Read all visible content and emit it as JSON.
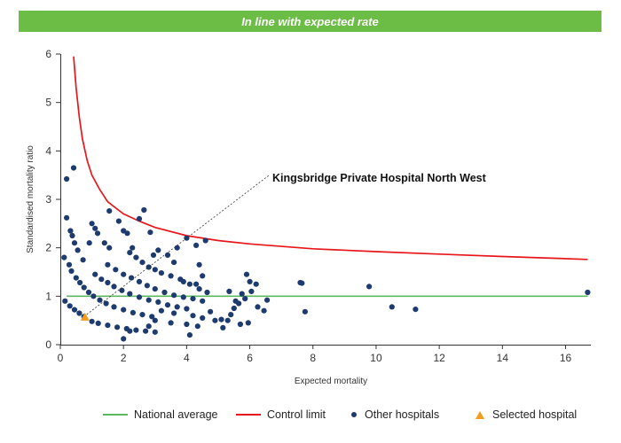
{
  "banner": {
    "text": "In line with expected rate",
    "color": "#6cbd45"
  },
  "chart_data": {
    "type": "scatter",
    "title": "",
    "xlabel": "Expected mortality",
    "ylabel": "Standardised mortality ratio",
    "xlim": [
      0,
      16.8
    ],
    "ylim": [
      0,
      6
    ],
    "x_ticks": [
      0,
      2,
      4,
      6,
      8,
      10,
      12,
      14,
      16
    ],
    "y_ticks": [
      0,
      1,
      2,
      3,
      4,
      5,
      6
    ],
    "grid": false,
    "legend_position": "bottom",
    "national_average": 1,
    "colors": {
      "national_average": "#5cb85c",
      "control_limit": "#e8161b",
      "other_hospitals": "#1d3b6e",
      "selected_hospital": "#f39c1f"
    },
    "control_limit": {
      "x": [
        0.42,
        0.5,
        0.6,
        0.7,
        0.85,
        1.0,
        1.25,
        1.5,
        2.0,
        2.5,
        3.0,
        4.0,
        5.0,
        6.0,
        8.0,
        10.0,
        12.0,
        14.0,
        16.7
      ],
      "y": [
        5.95,
        5.3,
        4.7,
        4.25,
        3.8,
        3.5,
        3.2,
        2.95,
        2.7,
        2.55,
        2.42,
        2.25,
        2.15,
        2.08,
        1.98,
        1.92,
        1.87,
        1.82,
        1.76
      ]
    },
    "other_hospitals": [
      [
        0.2,
        3.42
      ],
      [
        0.42,
        3.65
      ],
      [
        0.2,
        2.62
      ],
      [
        0.32,
        2.35
      ],
      [
        0.38,
        2.25
      ],
      [
        0.45,
        2.1
      ],
      [
        0.55,
        1.95
      ],
      [
        0.72,
        1.75
      ],
      [
        0.92,
        2.1
      ],
      [
        1.0,
        2.5
      ],
      [
        1.1,
        2.4
      ],
      [
        1.18,
        2.3
      ],
      [
        1.4,
        2.1
      ],
      [
        1.55,
        2.0
      ],
      [
        1.55,
        2.76
      ],
      [
        1.85,
        2.55
      ],
      [
        2.0,
        2.35
      ],
      [
        2.12,
        2.3
      ],
      [
        2.28,
        2.0
      ],
      [
        2.5,
        2.6
      ],
      [
        2.65,
        2.78
      ],
      [
        2.85,
        2.32
      ],
      [
        2.95,
        1.85
      ],
      [
        3.1,
        1.95
      ],
      [
        3.4,
        1.85
      ],
      [
        3.7,
        2.0
      ],
      [
        4.0,
        2.2
      ],
      [
        4.3,
        2.05
      ],
      [
        4.6,
        2.15
      ],
      [
        4.4,
        1.65
      ],
      [
        4.5,
        1.42
      ],
      [
        4.3,
        1.25
      ],
      [
        3.6,
        1.7
      ],
      [
        3.9,
        1.3
      ],
      [
        0.12,
        1.8
      ],
      [
        0.28,
        1.65
      ],
      [
        0.35,
        1.52
      ],
      [
        0.15,
        0.9
      ],
      [
        0.3,
        0.8
      ],
      [
        0.45,
        0.72
      ],
      [
        0.6,
        0.65
      ],
      [
        0.75,
        0.58
      ],
      [
        1.0,
        0.48
      ],
      [
        1.2,
        0.44
      ],
      [
        1.5,
        0.4
      ],
      [
        1.8,
        0.36
      ],
      [
        2.1,
        0.33
      ],
      [
        2.4,
        0.3
      ],
      [
        2.7,
        0.28
      ],
      [
        3.0,
        0.26
      ],
      [
        0.5,
        1.38
      ],
      [
        0.62,
        1.28
      ],
      [
        0.75,
        1.18
      ],
      [
        0.9,
        1.08
      ],
      [
        1.05,
        1.0
      ],
      [
        1.25,
        0.92
      ],
      [
        1.45,
        0.85
      ],
      [
        1.7,
        0.78
      ],
      [
        2.0,
        0.72
      ],
      [
        2.3,
        0.66
      ],
      [
        2.6,
        0.62
      ],
      [
        2.9,
        0.58
      ],
      [
        1.1,
        1.45
      ],
      [
        1.3,
        1.35
      ],
      [
        1.5,
        1.28
      ],
      [
        1.7,
        1.2
      ],
      [
        1.95,
        1.12
      ],
      [
        2.2,
        1.05
      ],
      [
        2.5,
        0.98
      ],
      [
        2.8,
        0.92
      ],
      [
        3.1,
        0.88
      ],
      [
        3.4,
        0.82
      ],
      [
        3.7,
        0.78
      ],
      [
        4.0,
        0.74
      ],
      [
        1.5,
        1.65
      ],
      [
        1.75,
        1.55
      ],
      [
        2.0,
        1.45
      ],
      [
        2.25,
        1.38
      ],
      [
        2.5,
        1.3
      ],
      [
        2.75,
        1.22
      ],
      [
        3.0,
        1.15
      ],
      [
        3.3,
        1.08
      ],
      [
        3.6,
        1.02
      ],
      [
        3.9,
        0.98
      ],
      [
        4.2,
        0.95
      ],
      [
        4.5,
        0.9
      ],
      [
        2.2,
        1.9
      ],
      [
        2.4,
        1.8
      ],
      [
        2.6,
        1.7
      ],
      [
        2.8,
        1.6
      ],
      [
        3.0,
        1.55
      ],
      [
        3.2,
        1.48
      ],
      [
        3.5,
        1.42
      ],
      [
        3.8,
        1.35
      ],
      [
        4.1,
        1.25
      ],
      [
        4.4,
        1.15
      ],
      [
        4.65,
        1.08
      ],
      [
        3.0,
        0.5
      ],
      [
        3.5,
        0.45
      ],
      [
        4.0,
        0.42
      ],
      [
        3.2,
        0.7
      ],
      [
        3.6,
        0.65
      ],
      [
        4.2,
        0.6
      ],
      [
        4.5,
        0.55
      ],
      [
        4.75,
        0.68
      ],
      [
        4.9,
        0.5
      ],
      [
        5.1,
        0.52
      ],
      [
        5.3,
        0.5
      ],
      [
        5.15,
        0.35
      ],
      [
        5.4,
        0.62
      ],
      [
        5.5,
        0.75
      ],
      [
        5.65,
        0.85
      ],
      [
        5.75,
        1.05
      ],
      [
        5.9,
        1.45
      ],
      [
        6.0,
        1.3
      ],
      [
        6.2,
        1.25
      ],
      [
        6.05,
        1.1
      ],
      [
        6.25,
        0.78
      ],
      [
        6.45,
        0.7
      ],
      [
        6.55,
        0.92
      ],
      [
        5.35,
        1.1
      ],
      [
        5.55,
        0.9
      ],
      [
        5.85,
        0.95
      ],
      [
        5.7,
        0.42
      ],
      [
        5.95,
        0.45
      ],
      [
        4.1,
        0.2
      ],
      [
        4.35,
        0.38
      ],
      [
        2.0,
        0.12
      ],
      [
        2.2,
        0.28
      ],
      [
        2.8,
        0.38
      ],
      [
        7.6,
        1.28
      ],
      [
        7.65,
        1.27
      ],
      [
        7.75,
        0.68
      ],
      [
        9.78,
        1.2
      ],
      [
        10.5,
        0.78
      ],
      [
        11.25,
        0.73
      ],
      [
        16.7,
        1.08
      ]
    ],
    "selected_hospital": {
      "name": "Kingsbridge Private Hospital North West",
      "x": 0.78,
      "y": 0.57
    }
  },
  "legend": {
    "national_average": "National average",
    "control_limit": "Control limit",
    "other_hospitals": "Other hospitals",
    "selected_hospital": "Selected hospital"
  }
}
